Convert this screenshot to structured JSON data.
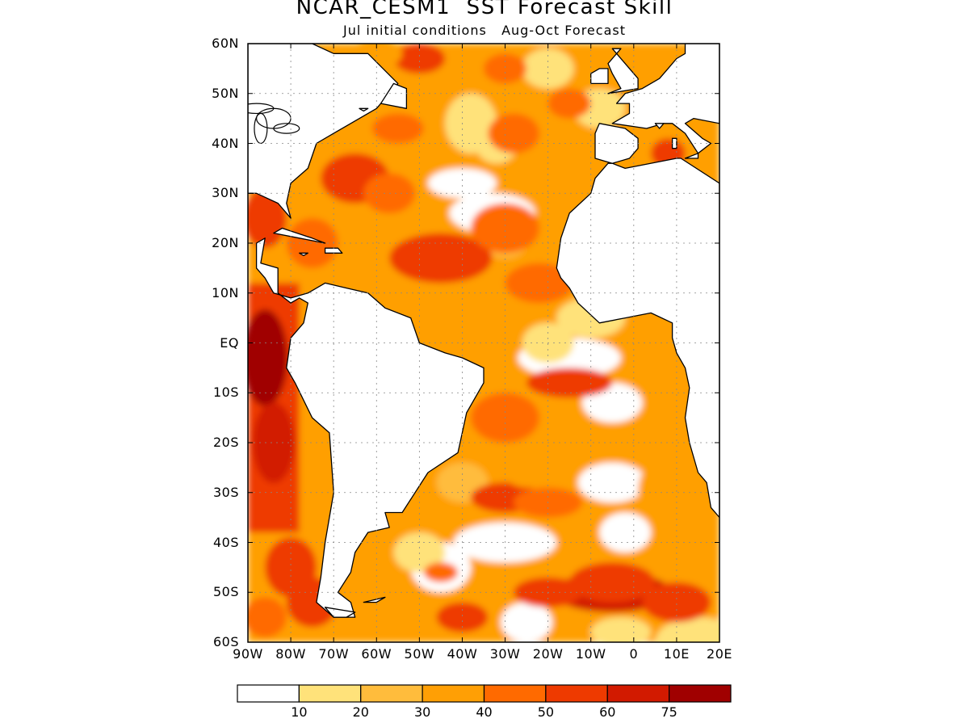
{
  "title": "NCAR_CESM1  SST Forecast Skill",
  "subtitle": "Jul initial conditions   Aug-Oct Forecast",
  "y_ticks": [
    "60N",
    "50N",
    "40N",
    "30N",
    "20N",
    "10N",
    "EQ",
    "10S",
    "20S",
    "30S",
    "40S",
    "50S",
    "60S"
  ],
  "x_ticks": [
    "90W",
    "80W",
    "70W",
    "60W",
    "50W",
    "40W",
    "30W",
    "20W",
    "10W",
    "0",
    "10E",
    "20E"
  ],
  "colorbar": {
    "labels": [
      "10",
      "20",
      "30",
      "40",
      "50",
      "60",
      "75"
    ],
    "colors": [
      "#ffffff",
      "#ffe27a",
      "#ffbc3c",
      "#ff9f05",
      "#ff6a00",
      "#ee3a00",
      "#d21a00",
      "#a00000"
    ]
  },
  "map_data": {
    "variable": "SST Forecast Skill",
    "extent": {
      "lon": [
        -90,
        20
      ],
      "lat": [
        -60,
        60
      ]
    },
    "grid_lines": true,
    "high_skill_regions": [
      {
        "name": "Eastern Pacific off South America",
        "lon": -85,
        "lat": -5,
        "skill_class": "75+"
      },
      {
        "name": "Subtropical North Atlantic",
        "lon": -45,
        "lat": 17,
        "skill_class": "50-60"
      },
      {
        "name": "Gulf Stream region",
        "lon": -65,
        "lat": 33,
        "skill_class": "50-60"
      },
      {
        "name": "Southern Ocean",
        "lon": -5,
        "lat": -50,
        "skill_class": "60-75"
      },
      {
        "name": "Eastern tropical South Atlantic",
        "lon": -15,
        "lat": -8,
        "skill_class": "50-60"
      },
      {
        "name": "South Atlantic band",
        "lon": -30,
        "lat": -31,
        "skill_class": "50-60"
      }
    ]
  }
}
